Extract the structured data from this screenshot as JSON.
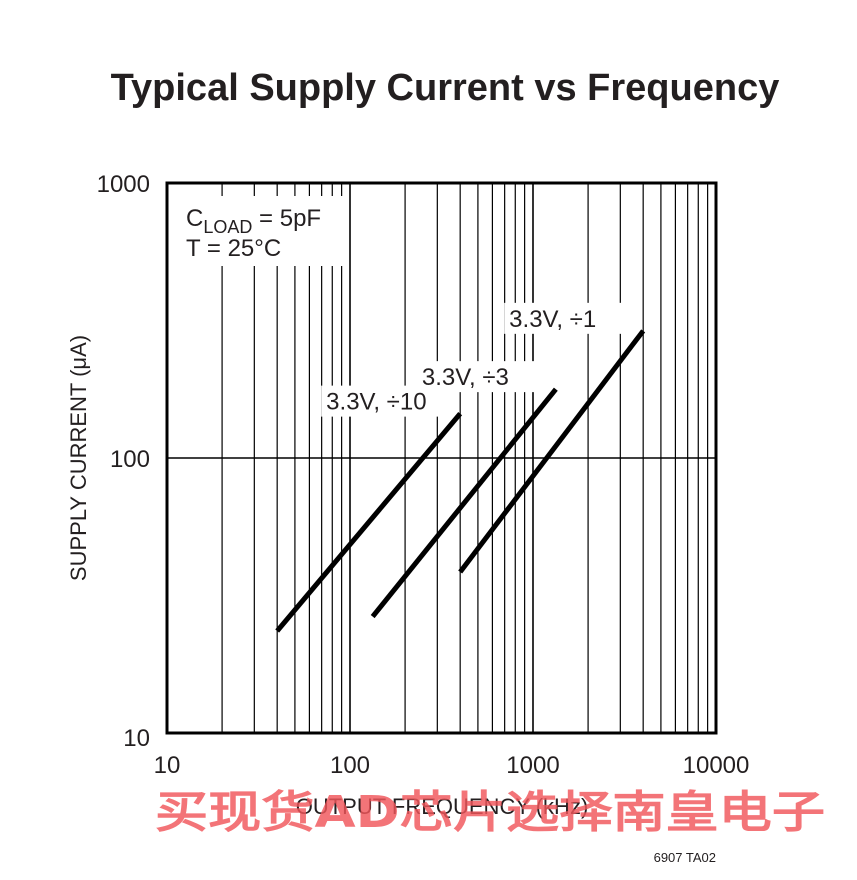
{
  "chart_data": {
    "type": "line",
    "title": "Typical Supply Current vs Frequency",
    "xlabel": "OUTPUT FREQUENCY (kHz)",
    "ylabel": "SUPPLY CURRENT (μA)",
    "xscale": "log",
    "yscale": "log",
    "xlim": [
      10,
      10000
    ],
    "ylim": [
      10,
      1000
    ],
    "x_ticks": [
      "10",
      "100",
      "1000",
      "10000"
    ],
    "y_ticks": [
      "10",
      "100",
      "1000"
    ],
    "grid": true,
    "annotation": {
      "c_main": "C",
      "c_sub": "LOAD",
      "c_value": " = 5pF",
      "temperature": "T = 25°C"
    },
    "series": [
      {
        "name": "3.3V, ÷10",
        "x": [
          40,
          400
        ],
        "y": [
          23.5,
          145
        ]
      },
      {
        "name": "3.3V, ÷3",
        "x": [
          133,
          1333
        ],
        "y": [
          26.5,
          178
        ]
      },
      {
        "name": "3.3V, ÷1",
        "x": [
          400,
          4000
        ],
        "y": [
          38.5,
          290
        ]
      }
    ],
    "line_color": "#000000"
  },
  "figure_code": "6907 TA02",
  "watermark": "买现货AD芯片选择南皇电子",
  "colors": {
    "text": "#231f20",
    "grid": "#000000",
    "watermark": "#f0555a"
  }
}
